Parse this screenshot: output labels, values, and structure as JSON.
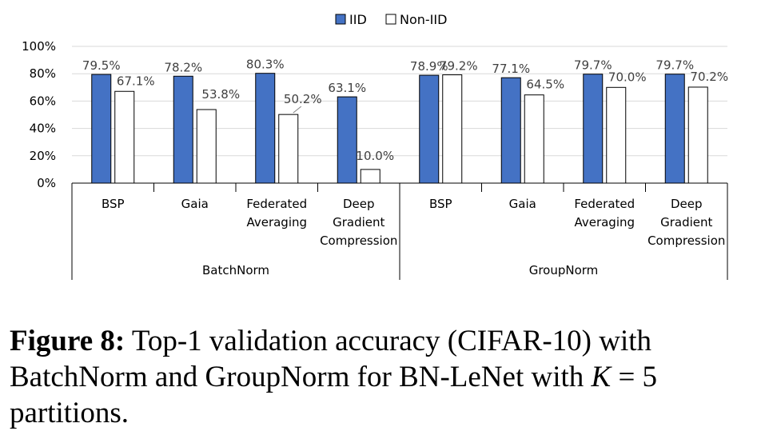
{
  "chart_data": {
    "type": "bar",
    "legend": {
      "placement": "top-center",
      "entries": [
        "IID",
        "Non-IID"
      ]
    },
    "series": [
      {
        "name": "IID",
        "color": "#4472C4",
        "values": [
          79.5,
          78.2,
          80.3,
          63.1,
          78.9,
          77.1,
          79.7,
          79.7
        ]
      },
      {
        "name": "Non-IID",
        "color": "#FFFFFF",
        "values": [
          67.1,
          53.8,
          50.2,
          10.0,
          79.2,
          64.5,
          70.0,
          70.2
        ]
      }
    ],
    "groups": [
      {
        "label": "BatchNorm",
        "categories": [
          [
            "BSP"
          ],
          [
            "Gaia"
          ],
          [
            "Federated",
            "Averaging"
          ],
          [
            "Deep",
            "Gradient",
            "Compression"
          ]
        ]
      },
      {
        "label": "GroupNorm",
        "categories": [
          [
            "BSP"
          ],
          [
            "Gaia"
          ],
          [
            "Federated",
            "Averaging"
          ],
          [
            "Deep",
            "Gradient",
            "Compression"
          ]
        ]
      }
    ],
    "data_labels": {
      "IID": [
        "79.5%",
        "78.2%",
        "80.3%",
        "63.1%",
        "78.9%",
        "77.1%",
        "79.7%",
        "79.7%"
      ],
      "Non-IID": [
        "67.1%",
        "53.8%",
        "50.2%",
        "10.0%",
        "79.2%",
        "64.5%",
        "70.0%",
        "70.2%"
      ]
    },
    "ylim": [
      0,
      100
    ],
    "yticks": [
      0,
      20,
      40,
      60,
      80,
      100
    ],
    "ytick_labels": [
      "0%",
      "20%",
      "40%",
      "60%",
      "80%",
      "100%"
    ],
    "grid": true
  },
  "caption": {
    "label": "Figure 8:",
    "text_1": "Top-1 validation accuracy (CIFAR-10) with BatchNorm and GroupNorm for BN-LeNet with ",
    "var": "K",
    "eq": " = 5",
    "text_2": " partitions."
  }
}
